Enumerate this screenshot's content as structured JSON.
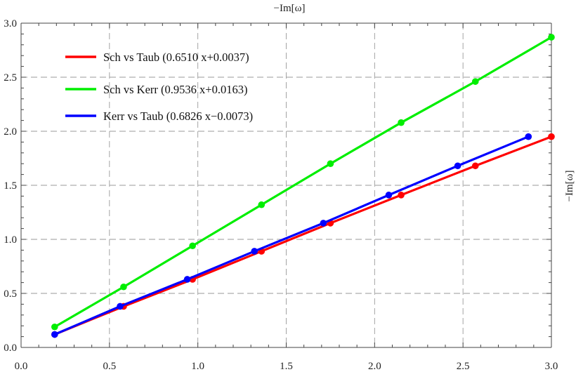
{
  "chart_data": {
    "type": "line",
    "title": "−Im[ω]",
    "xlabel": "",
    "ylabel": "−Im[ω]",
    "xlim": [
      0.0,
      3.0
    ],
    "ylim": [
      0.0,
      3.0
    ],
    "xticks": [
      "0.0",
      "0.5",
      "1.0",
      "1.5",
      "2.0",
      "2.5",
      "3.0"
    ],
    "yticks": [
      "0.0",
      "0.5",
      "1.0",
      "1.5",
      "2.0",
      "2.5",
      "3.0"
    ],
    "grid": true,
    "legend_position": "top-left",
    "series": [
      {
        "name": "Sch vs Taub (0.6510 x+0.0037)",
        "color": "#ff0000",
        "points": [
          [
            0.19,
            0.12
          ],
          [
            0.58,
            0.38
          ],
          [
            0.97,
            0.63
          ],
          [
            1.36,
            0.89
          ],
          [
            1.75,
            1.15
          ],
          [
            2.15,
            1.41
          ],
          [
            2.57,
            1.68
          ],
          [
            3.0,
            1.95
          ]
        ]
      },
      {
        "name": "Sch vs Kerr (0.9536 x+0.0163)",
        "color": "#00ee00",
        "points": [
          [
            0.19,
            0.19
          ],
          [
            0.58,
            0.56
          ],
          [
            0.97,
            0.94
          ],
          [
            1.36,
            1.32
          ],
          [
            1.75,
            1.7
          ],
          [
            2.15,
            2.08
          ],
          [
            2.57,
            2.46
          ],
          [
            3.0,
            2.87
          ]
        ]
      },
      {
        "name": "Kerr vs Taub (0.6826 x−0.0073)",
        "color": "#0000ff",
        "points": [
          [
            0.19,
            0.12
          ],
          [
            0.56,
            0.38
          ],
          [
            0.94,
            0.63
          ],
          [
            1.32,
            0.89
          ],
          [
            1.71,
            1.15
          ],
          [
            2.08,
            1.41
          ],
          [
            2.47,
            1.68
          ],
          [
            2.87,
            1.95
          ]
        ]
      }
    ]
  }
}
